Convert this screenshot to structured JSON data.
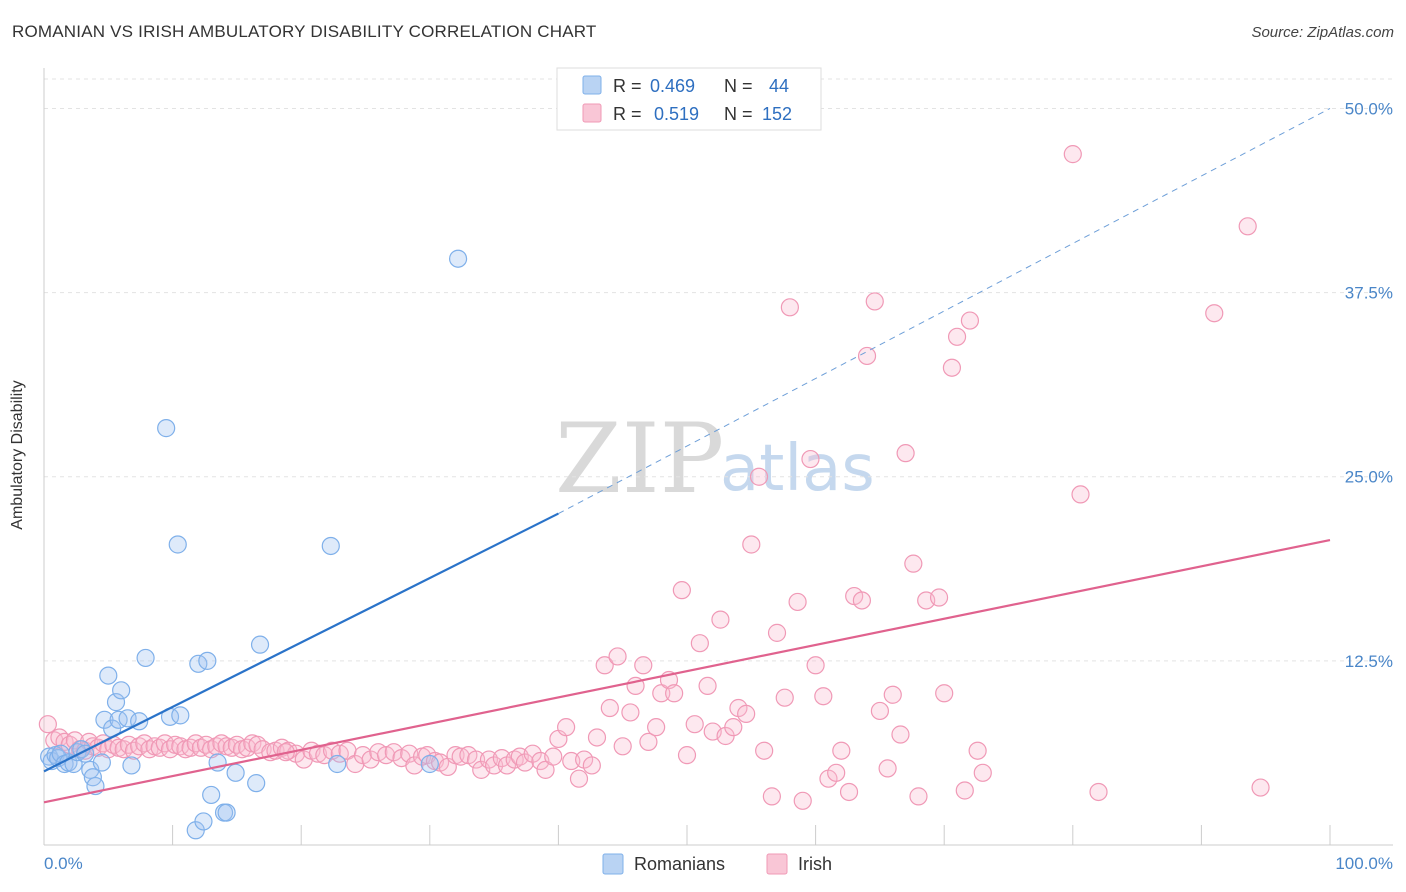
{
  "title": "ROMANIAN VS IRISH AMBULATORY DISABILITY CORRELATION CHART",
  "source": "Source: ZipAtlas.com",
  "watermark": {
    "zip": "ZIP",
    "atlas": "atlas"
  },
  "colors": {
    "romanians": "#7fb0ea",
    "romanians_fill": "rgba(160,196,240,0.35)",
    "romanians_line": "#2a73c9",
    "irish": "#f099b6",
    "irish_fill": "rgba(248,190,210,0.35)",
    "irish_line": "#e0628e",
    "axis_text": "#4a86c8"
  },
  "legend": {
    "r_label": "R =",
    "n_label": "N =",
    "romanians": {
      "r": "0.469",
      "n": "44"
    },
    "irish": {
      "r": "0.519",
      "n": "152"
    }
  },
  "chart_data": {
    "type": "scatter",
    "xlabel": "",
    "ylabel": "Ambulatory Disability",
    "xlim": [
      0,
      100
    ],
    "ylim": [
      0,
      52
    ],
    "x_tick_labels": [
      "0.0%",
      "100.0%"
    ],
    "y_ticks": [
      12.5,
      25.0,
      37.5,
      50.0
    ],
    "y_tick_labels": [
      "12.5%",
      "25.0%",
      "37.5%",
      "50.0%"
    ],
    "grid": true,
    "legend_position": "top-center",
    "series": [
      {
        "name": "Romanians",
        "trend": {
          "x0": 0,
          "y0": 5.0,
          "x1": 40,
          "y1": 22.5,
          "dashed_to_x": 100,
          "dashed_to_y": 50.0
        },
        "points": [
          [
            0.4,
            6.0
          ],
          [
            0.6,
            5.7
          ],
          [
            0.9,
            6.1
          ],
          [
            1.1,
            5.9
          ],
          [
            1.3,
            6.2
          ],
          [
            1.6,
            5.5
          ],
          [
            1.9,
            5.6
          ],
          [
            2.3,
            5.5
          ],
          [
            2.6,
            6.3
          ],
          [
            2.9,
            6.5
          ],
          [
            3.2,
            6.2
          ],
          [
            3.6,
            5.1
          ],
          [
            3.8,
            4.6
          ],
          [
            4.0,
            4.0
          ],
          [
            4.5,
            5.6
          ],
          [
            4.7,
            8.5
          ],
          [
            5.0,
            11.5
          ],
          [
            5.3,
            7.9
          ],
          [
            5.6,
            9.7
          ],
          [
            5.8,
            8.5
          ],
          [
            6.0,
            10.5
          ],
          [
            6.5,
            8.6
          ],
          [
            6.8,
            5.4
          ],
          [
            7.4,
            8.4
          ],
          [
            7.9,
            12.7
          ],
          [
            9.5,
            28.3
          ],
          [
            9.8,
            8.7
          ],
          [
            10.4,
            20.4
          ],
          [
            10.6,
            8.8
          ],
          [
            11.8,
            1.0
          ],
          [
            12.0,
            12.3
          ],
          [
            12.4,
            1.6
          ],
          [
            12.7,
            12.5
          ],
          [
            13.0,
            3.4
          ],
          [
            13.5,
            5.6
          ],
          [
            14.0,
            2.2
          ],
          [
            14.2,
            2.2
          ],
          [
            14.9,
            4.9
          ],
          [
            16.5,
            4.2
          ],
          [
            16.8,
            13.6
          ],
          [
            22.3,
            20.3
          ],
          [
            22.8,
            5.5
          ],
          [
            30.0,
            5.5
          ],
          [
            32.2,
            39.8
          ]
        ]
      },
      {
        "name": "Irish",
        "trend": {
          "x0": 0,
          "y0": 2.9,
          "x1": 100,
          "y1": 20.7
        },
        "points": [
          [
            0.3,
            8.2
          ],
          [
            0.8,
            7.1
          ],
          [
            1.2,
            7.3
          ],
          [
            1.6,
            7.0
          ],
          [
            2.0,
            6.8
          ],
          [
            2.4,
            7.1
          ],
          [
            2.8,
            6.5
          ],
          [
            3.2,
            6.4
          ],
          [
            3.5,
            7.0
          ],
          [
            3.8,
            6.7
          ],
          [
            4.2,
            6.6
          ],
          [
            4.6,
            6.9
          ],
          [
            5.0,
            6.5
          ],
          [
            5.4,
            6.8
          ],
          [
            5.8,
            6.6
          ],
          [
            6.2,
            6.5
          ],
          [
            6.6,
            6.8
          ],
          [
            7.0,
            6.4
          ],
          [
            7.4,
            6.7
          ],
          [
            7.8,
            6.9
          ],
          [
            8.2,
            6.5
          ],
          [
            8.6,
            6.7
          ],
          [
            9.0,
            6.6
          ],
          [
            9.4,
            6.9
          ],
          [
            9.8,
            6.5
          ],
          [
            10.2,
            6.8
          ],
          [
            10.6,
            6.7
          ],
          [
            11.0,
            6.5
          ],
          [
            11.4,
            6.6
          ],
          [
            11.8,
            6.9
          ],
          [
            12.2,
            6.6
          ],
          [
            12.6,
            6.8
          ],
          [
            13.0,
            6.5
          ],
          [
            13.4,
            6.7
          ],
          [
            13.8,
            6.9
          ],
          [
            14.2,
            6.7
          ],
          [
            14.6,
            6.6
          ],
          [
            15.0,
            6.8
          ],
          [
            15.4,
            6.5
          ],
          [
            15.8,
            6.6
          ],
          [
            16.2,
            6.9
          ],
          [
            16.6,
            6.8
          ],
          [
            17.0,
            6.5
          ],
          [
            17.6,
            6.3
          ],
          [
            18.0,
            6.4
          ],
          [
            18.5,
            6.6
          ],
          [
            19.0,
            6.4
          ],
          [
            19.6,
            6.2
          ],
          [
            20.2,
            5.8
          ],
          [
            20.8,
            6.4
          ],
          [
            21.3,
            6.2
          ],
          [
            21.8,
            6.1
          ],
          [
            22.4,
            6.4
          ],
          [
            23.0,
            6.2
          ],
          [
            23.6,
            6.4
          ],
          [
            24.2,
            5.5
          ],
          [
            24.8,
            6.1
          ],
          [
            25.4,
            5.8
          ],
          [
            26.0,
            6.3
          ],
          [
            26.6,
            6.1
          ],
          [
            27.2,
            6.3
          ],
          [
            27.8,
            5.9
          ],
          [
            28.4,
            6.2
          ],
          [
            28.8,
            5.4
          ],
          [
            29.4,
            6.0
          ],
          [
            29.8,
            6.1
          ],
          [
            30.4,
            5.7
          ],
          [
            30.8,
            5.6
          ],
          [
            31.4,
            5.3
          ],
          [
            32.0,
            6.1
          ],
          [
            32.4,
            6.0
          ],
          [
            33.0,
            6.1
          ],
          [
            33.6,
            5.8
          ],
          [
            34.0,
            5.1
          ],
          [
            34.6,
            5.8
          ],
          [
            35.0,
            5.4
          ],
          [
            35.6,
            5.9
          ],
          [
            36.0,
            5.4
          ],
          [
            36.6,
            5.8
          ],
          [
            37.0,
            6.0
          ],
          [
            37.4,
            5.6
          ],
          [
            38.0,
            6.2
          ],
          [
            38.6,
            5.7
          ],
          [
            39.0,
            5.1
          ],
          [
            39.6,
            6.0
          ],
          [
            40.0,
            7.2
          ],
          [
            40.6,
            8.0
          ],
          [
            41.0,
            5.7
          ],
          [
            41.6,
            4.5
          ],
          [
            42.0,
            5.8
          ],
          [
            42.6,
            5.4
          ],
          [
            43.0,
            7.3
          ],
          [
            43.6,
            12.2
          ],
          [
            44.0,
            9.3
          ],
          [
            44.6,
            12.8
          ],
          [
            45.0,
            6.7
          ],
          [
            45.6,
            9.0
          ],
          [
            46.0,
            10.8
          ],
          [
            46.6,
            12.2
          ],
          [
            47.0,
            7.0
          ],
          [
            47.6,
            8.0
          ],
          [
            48.0,
            10.3
          ],
          [
            48.6,
            11.2
          ],
          [
            49.0,
            10.3
          ],
          [
            49.6,
            17.3
          ],
          [
            50.0,
            6.1
          ],
          [
            50.6,
            8.2
          ],
          [
            51.0,
            13.7
          ],
          [
            51.6,
            10.8
          ],
          [
            52.0,
            7.7
          ],
          [
            52.6,
            15.3
          ],
          [
            53.0,
            7.4
          ],
          [
            53.6,
            8.0
          ],
          [
            54.0,
            9.3
          ],
          [
            54.6,
            8.9
          ],
          [
            55.0,
            20.4
          ],
          [
            55.6,
            25.0
          ],
          [
            56.0,
            6.4
          ],
          [
            56.6,
            3.3
          ],
          [
            57.0,
            14.4
          ],
          [
            57.6,
            10.0
          ],
          [
            58.0,
            36.5
          ],
          [
            58.6,
            16.5
          ],
          [
            59.0,
            3.0
          ],
          [
            59.6,
            26.2
          ],
          [
            60.0,
            12.2
          ],
          [
            60.6,
            10.1
          ],
          [
            61.0,
            4.5
          ],
          [
            61.6,
            4.9
          ],
          [
            62.0,
            6.4
          ],
          [
            62.6,
            3.6
          ],
          [
            63.0,
            16.9
          ],
          [
            63.6,
            16.6
          ],
          [
            64.0,
            33.2
          ],
          [
            64.6,
            36.9
          ],
          [
            65.0,
            9.1
          ],
          [
            65.6,
            5.2
          ],
          [
            66.0,
            10.2
          ],
          [
            66.6,
            7.5
          ],
          [
            67.0,
            26.6
          ],
          [
            67.6,
            19.1
          ],
          [
            68.0,
            3.3
          ],
          [
            68.6,
            16.6
          ],
          [
            69.6,
            16.8
          ],
          [
            70.0,
            10.3
          ],
          [
            70.6,
            32.4
          ],
          [
            71.0,
            34.5
          ],
          [
            71.6,
            3.7
          ],
          [
            72.0,
            35.6
          ],
          [
            72.6,
            6.4
          ],
          [
            73.0,
            4.9
          ],
          [
            80.0,
            46.9
          ],
          [
            80.6,
            23.8
          ],
          [
            82.0,
            3.6
          ],
          [
            91.0,
            36.1
          ],
          [
            93.6,
            42.0
          ],
          [
            94.6,
            3.9
          ],
          [
            18.8,
            6.3
          ]
        ]
      }
    ]
  },
  "bottom_legend": {
    "romanians": "Romanians",
    "irish": "Irish"
  }
}
